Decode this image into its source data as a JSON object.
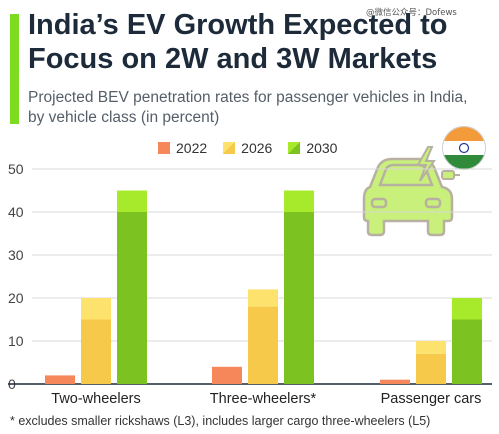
{
  "header": {
    "title": "India’s EV Growth Expected to Focus on 2W and 3W Markets",
    "subtitle": "Projected BEV penetration rates for passenger vehicles in India, by vehicle class (in percent)",
    "watermark": "@微信公众号：Dofews"
  },
  "footnote": "* excludes smaller rickshaws (L3), includes larger cargo three-wheelers (L5)",
  "colors": {
    "accent": "#7ddc1f",
    "y2022": "#f5875a",
    "y2026_top": "#fde26e",
    "y2026_bottom": "#f6c94a",
    "y2030_top": "#a7ea2c",
    "y2030_bottom": "#7cc321",
    "icon_fill": "#c8f07a",
    "icon_stroke": "#b8b0a0"
  },
  "icons": {
    "flag": "india-flag-icon",
    "car": "electric-car-icon"
  },
  "chart_data": {
    "type": "bar",
    "categories": [
      "Two-wheelers",
      "Three-wheelers*",
      "Passenger cars"
    ],
    "series": [
      {
        "name": "2022",
        "values": [
          2,
          4,
          1
        ]
      },
      {
        "name": "2026",
        "values": [
          20,
          22,
          10
        ],
        "lower": [
          15,
          18,
          7
        ]
      },
      {
        "name": "2030",
        "values": [
          45,
          45,
          20
        ],
        "lower": [
          40,
          40,
          15
        ]
      }
    ],
    "yticks": [
      "0",
      "10",
      "20",
      "30",
      "40",
      "50"
    ],
    "ylim": [
      0,
      50
    ],
    "grid": true,
    "legend": "top"
  }
}
